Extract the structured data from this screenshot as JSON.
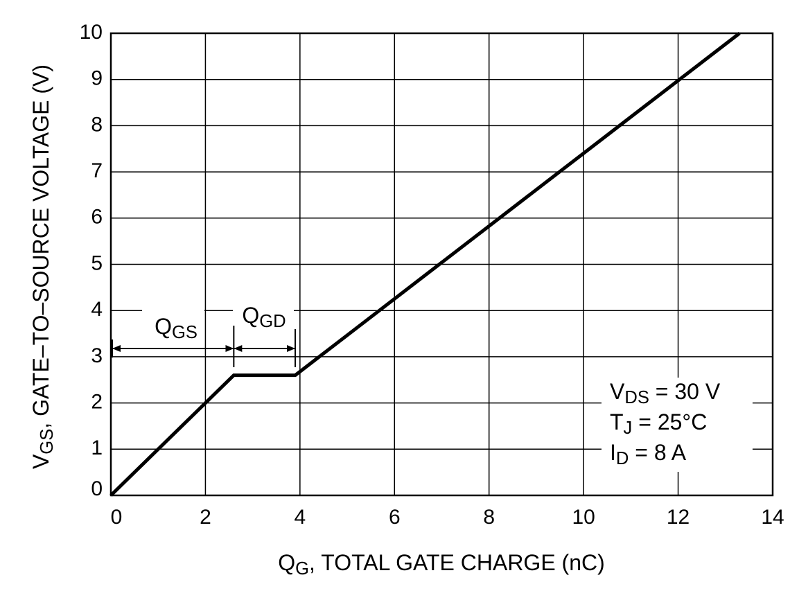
{
  "chart_data": {
    "type": "line",
    "xlabel": [
      "Q",
      "G",
      ", TOTAL GATE CHARGE (nC)"
    ],
    "ylabel": [
      "V",
      "GS",
      ", GATE–TO–SOURCE VOLTAGE (V)"
    ],
    "xlim": [
      0,
      14
    ],
    "xticks": [
      0,
      2,
      4,
      6,
      8,
      10,
      12,
      14
    ],
    "ylim": [
      0,
      10
    ],
    "yticks": [
      0,
      1,
      2,
      3,
      4,
      5,
      6,
      7,
      8,
      9,
      10
    ],
    "grid": true,
    "series": [
      {
        "color": "#000000",
        "x": [
          0,
          2.6,
          3.9,
          13.3
        ],
        "values": [
          0,
          2.6,
          2.6,
          10
        ]
      }
    ],
    "annotations": {
      "qgs": [
        "Q",
        "GS"
      ],
      "qgd": [
        "Q",
        "GD"
      ]
    },
    "conditions": [
      [
        "V",
        "DS",
        " = 30 V"
      ],
      [
        "T",
        "J",
        " = 25°C"
      ],
      [
        "I",
        "D",
        " = 8 A"
      ]
    ]
  }
}
